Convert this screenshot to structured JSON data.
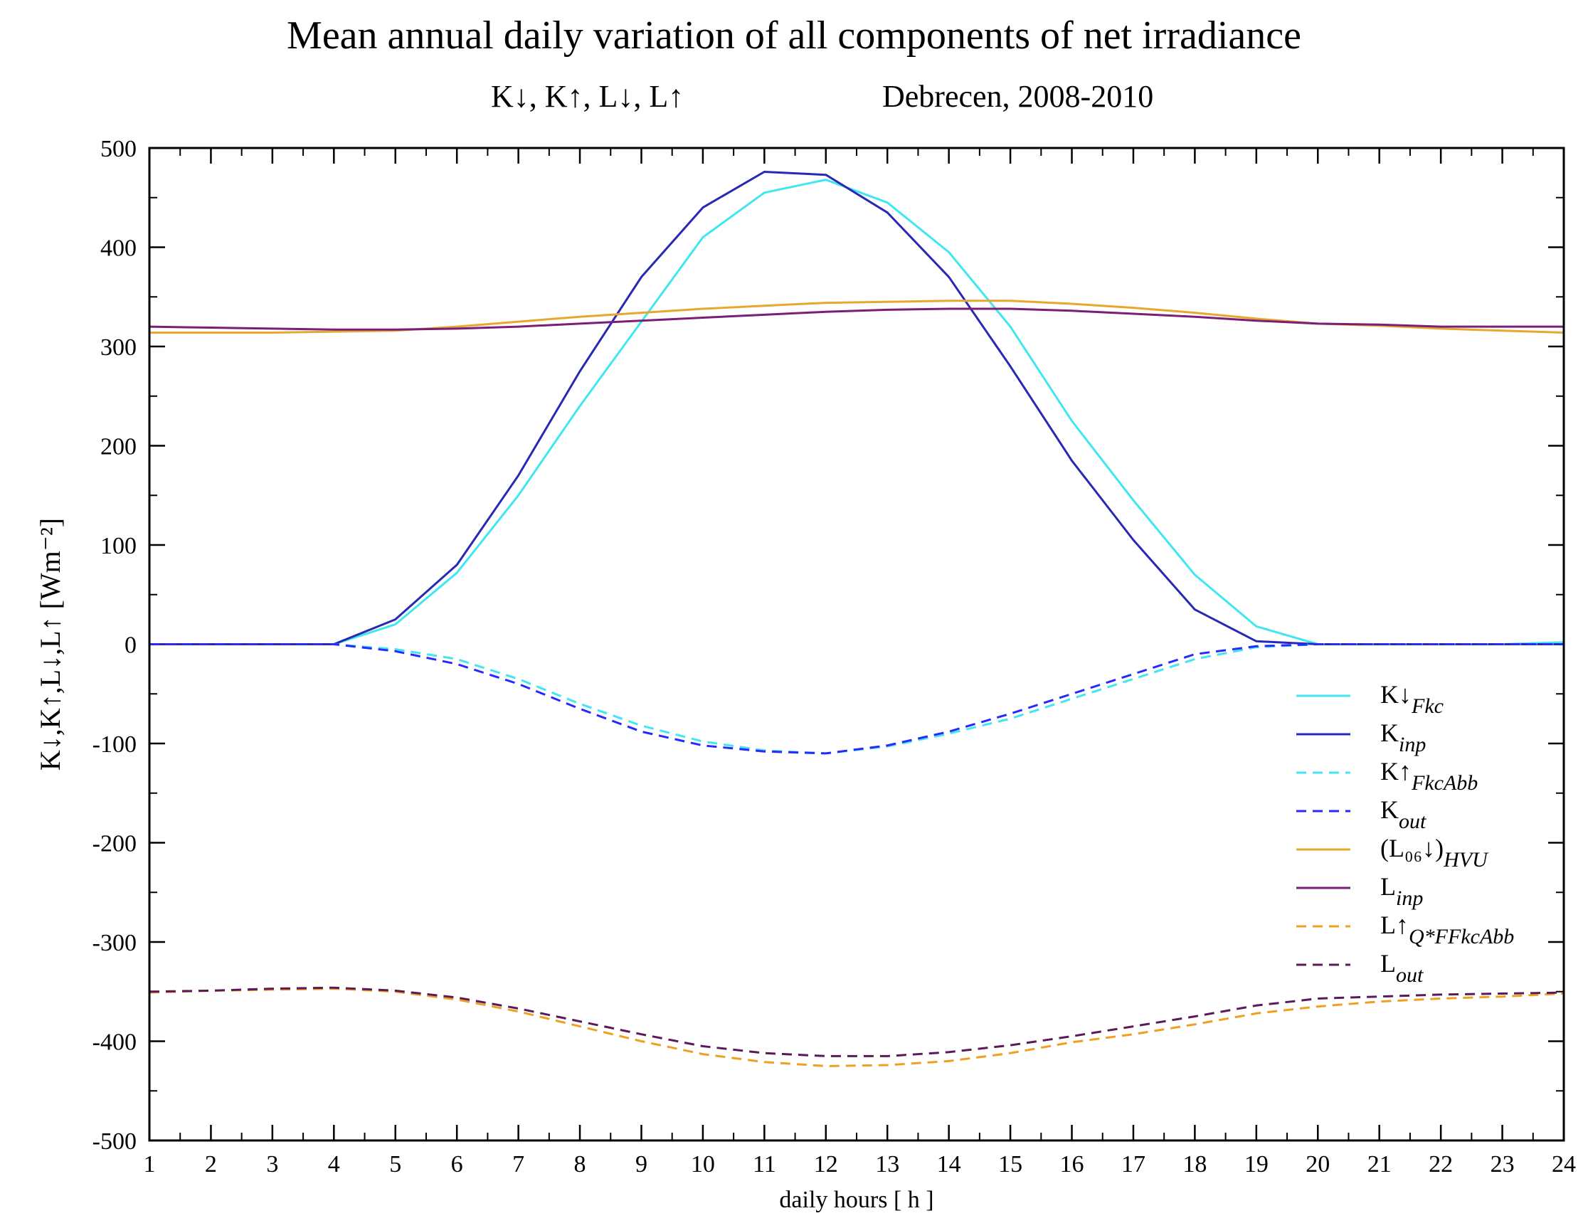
{
  "chart_data": {
    "type": "line",
    "title": "Mean annual daily variation of all components of  net irradiance",
    "subtitle_left": "K↓, K↑, L↓, L↑",
    "subtitle_right": "Debrecen, 2008-2010",
    "xlabel": "daily hours [ h ]",
    "ylabel": "K↓,K↑,L↓,L↑ [Wm⁻²]",
    "xlim": [
      1,
      24
    ],
    "ylim": [
      -500,
      500
    ],
    "x": [
      1,
      2,
      3,
      4,
      5,
      6,
      7,
      8,
      9,
      10,
      11,
      12,
      13,
      14,
      15,
      16,
      17,
      18,
      19,
      20,
      21,
      22,
      23,
      24
    ],
    "xticks": [
      "1",
      "2",
      "3",
      "4",
      "5",
      "6",
      "7",
      "8",
      "9",
      "10",
      "11",
      "12",
      "13",
      "14",
      "15",
      "16",
      "17",
      "18",
      "19",
      "20",
      "21",
      "22",
      "23",
      "24"
    ],
    "yticks": [
      "500",
      "400",
      "300",
      "200",
      "100",
      "0",
      "-100",
      "-200",
      "-300",
      "-400",
      "-500"
    ],
    "legend_position": "right",
    "series": [
      {
        "name": "K↓Fkc",
        "label_main": "K↓",
        "label_sub": "Fkc",
        "color": "#40e6f0",
        "dash": false,
        "values": [
          0,
          0,
          0,
          0,
          20,
          72,
          150,
          240,
          325,
          410,
          455,
          468,
          445,
          395,
          320,
          225,
          145,
          70,
          18,
          0,
          0,
          0,
          0,
          2
        ]
      },
      {
        "name": "Kinp",
        "label_main": "K",
        "label_sub": "inp",
        "color": "#2828b4",
        "dash": false,
        "values": [
          0,
          0,
          0,
          0,
          25,
          80,
          170,
          275,
          370,
          440,
          476,
          473,
          435,
          370,
          280,
          185,
          105,
          35,
          3,
          0,
          0,
          0,
          0,
          0
        ]
      },
      {
        "name": "K↑FkcAbb",
        "label_main": "K↑",
        "label_sub": "FkcAbb",
        "color": "#40e6f0",
        "dash": true,
        "values": [
          0,
          0,
          0,
          0,
          -5,
          -15,
          -35,
          -60,
          -82,
          -98,
          -107,
          -110,
          -103,
          -90,
          -75,
          -55,
          -35,
          -15,
          -3,
          0,
          0,
          0,
          0,
          0
        ]
      },
      {
        "name": "Kout",
        "label_main": "K",
        "label_sub": "out",
        "color": "#2828ff",
        "dash": true,
        "values": [
          0,
          0,
          0,
          0,
          -7,
          -20,
          -40,
          -65,
          -88,
          -102,
          -108,
          -110,
          -102,
          -88,
          -70,
          -50,
          -30,
          -10,
          -2,
          0,
          0,
          0,
          0,
          0
        ]
      },
      {
        "name": "(L06↓)HVU",
        "label_main": "(L₀₆↓)",
        "label_sub": "HVU",
        "color": "#e6a82e",
        "dash": false,
        "values": [
          314,
          314,
          314,
          315,
          316,
          320,
          325,
          330,
          334,
          338,
          341,
          344,
          345,
          346,
          346,
          343,
          339,
          334,
          328,
          323,
          321,
          318,
          316,
          314
        ]
      },
      {
        "name": "Linp",
        "label_main": "L",
        "label_sub": "inp",
        "color": "#7a1e78",
        "dash": false,
        "values": [
          320,
          319,
          318,
          317,
          317,
          318,
          320,
          323,
          326,
          329,
          332,
          335,
          337,
          338,
          338,
          336,
          333,
          330,
          326,
          323,
          322,
          320,
          320,
          320
        ]
      },
      {
        "name": "L↑Q*FFkcAbb",
        "label_main": "L↑",
        "label_sub": "Q*FFkcAbb",
        "color": "#f0a020",
        "dash": true,
        "values": [
          -351,
          -349,
          -348,
          -347,
          -350,
          -358,
          -370,
          -385,
          -400,
          -413,
          -421,
          -425,
          -424,
          -420,
          -412,
          -401,
          -393,
          -383,
          -372,
          -365,
          -360,
          -357,
          -355,
          -352
        ]
      },
      {
        "name": "Lout",
        "label_main": "L",
        "label_sub": "out",
        "color": "#5a1a5a",
        "dash": true,
        "values": [
          -350,
          -349,
          -347,
          -346,
          -349,
          -356,
          -367,
          -380,
          -393,
          -405,
          -412,
          -415,
          -415,
          -411,
          -404,
          -395,
          -385,
          -375,
          -364,
          -357,
          -355,
          -353,
          -352,
          -351
        ]
      }
    ]
  }
}
